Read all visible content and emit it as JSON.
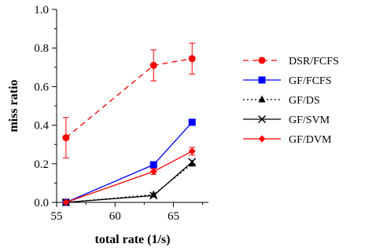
{
  "chart_data": {
    "type": "line",
    "xlabel": "total rate (1/s)",
    "ylabel": "miss ratio",
    "xlim": [
      55,
      68
    ],
    "ylim": [
      0,
      1.0
    ],
    "x_ticks": [
      55,
      60,
      65
    ],
    "x_tick_labels": [
      "55",
      "60",
      "65"
    ],
    "y_ticks": [
      0.0,
      0.2,
      0.4,
      0.6,
      0.8,
      1.0
    ],
    "y_tick_labels": [
      "0.0",
      "0.2",
      "0.4",
      "0.6",
      "0.8",
      "1.0"
    ],
    "grid": false,
    "legend_position": "right",
    "series": [
      {
        "name": "DSR/FCFS",
        "color": "#ff0000",
        "dash": "dashed",
        "marker": "circle",
        "x": [
          55.8,
          63.3,
          66.6
        ],
        "y": [
          0.335,
          0.71,
          0.745
        ],
        "err": [
          0.105,
          0.08,
          0.08
        ]
      },
      {
        "name": "GF/FCFS",
        "color": "#0000ff",
        "dash": "solid",
        "marker": "square",
        "x": [
          55.8,
          63.3,
          66.6
        ],
        "y": [
          0.0,
          0.195,
          0.415
        ],
        "err": [
          0,
          0,
          0
        ]
      },
      {
        "name": "GF/DS",
        "color": "#000000",
        "dash": "dotted",
        "marker": "triangle",
        "x": [
          55.8,
          63.3,
          66.6
        ],
        "y": [
          0.0,
          0.04,
          0.2
        ],
        "err": [
          0,
          0,
          0
        ]
      },
      {
        "name": "GF/SVM",
        "color": "#000000",
        "dash": "solid",
        "marker": "x",
        "x": [
          55.8,
          63.3,
          66.6
        ],
        "y": [
          0.0,
          0.035,
          0.21
        ],
        "err": [
          0,
          0,
          0
        ]
      },
      {
        "name": "GF/DVM",
        "color": "#ff0000",
        "dash": "solid",
        "marker": "diamond",
        "x": [
          55.8,
          63.3,
          66.6
        ],
        "y": [
          0.0,
          0.16,
          0.265
        ],
        "err": [
          0,
          0.015,
          0.02
        ]
      }
    ]
  }
}
